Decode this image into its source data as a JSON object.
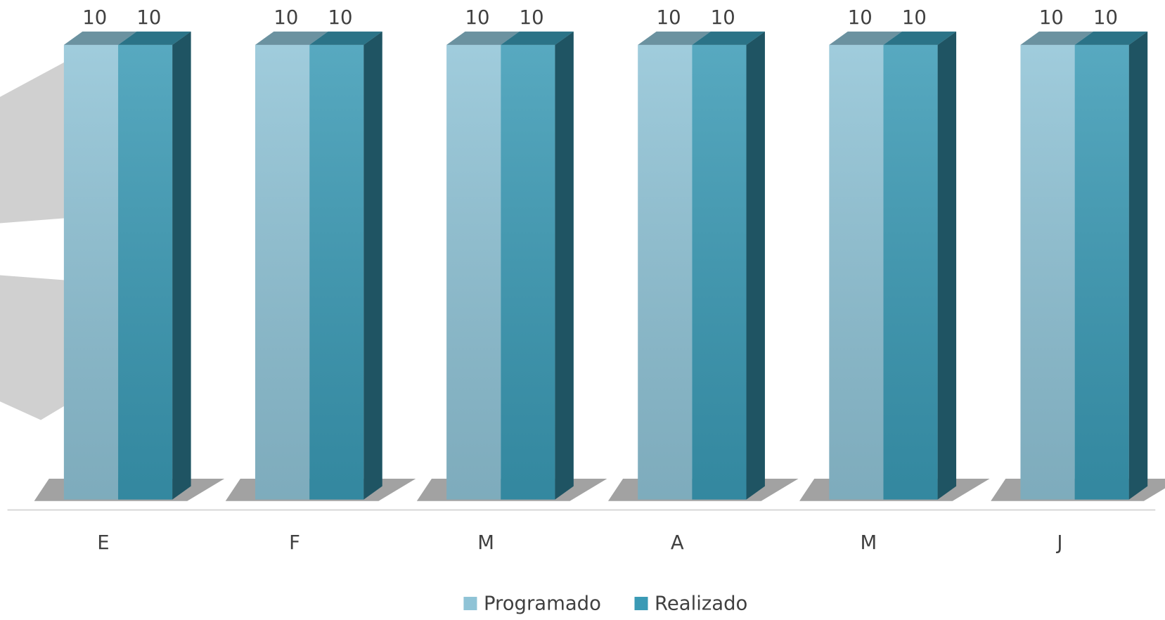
{
  "chart_data": {
    "type": "bar3d",
    "categories": [
      "E",
      "F",
      "M",
      "A",
      "M",
      "J"
    ],
    "series": [
      {
        "name": "Programado",
        "color": "#8fc3d6",
        "values": [
          10,
          10,
          10,
          10,
          10,
          10
        ]
      },
      {
        "name": "Realizado",
        "color": "#3a9ab5",
        "values": [
          10,
          10,
          10,
          10,
          10,
          10
        ]
      }
    ],
    "legend": "bottom"
  }
}
